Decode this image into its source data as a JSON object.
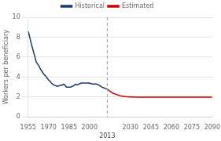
{
  "chart_data": {
    "type": "line",
    "ylabel": "Workers per beneficiary",
    "xlim": [
      1955,
      2090
    ],
    "ylim": [
      0,
      10
    ],
    "xticks": [
      1955,
      1970,
      1985,
      2000,
      2030,
      2045,
      2060,
      2075,
      2090
    ],
    "yticks": [
      0,
      2,
      4,
      6,
      8,
      10
    ],
    "grid": "y",
    "legend": "top",
    "series": [
      {
        "name": "Historical",
        "color": "#1a3a6b",
        "x": [
          1955,
          1956,
          1957,
          1958,
          1959,
          1960,
          1961,
          1962,
          1963,
          1964,
          1965,
          1966,
          1967,
          1968,
          1969,
          1970,
          1971,
          1972,
          1973,
          1974,
          1975,
          1976,
          1977,
          1978,
          1979,
          1980,
          1981,
          1982,
          1983,
          1984,
          1985,
          1986,
          1987,
          1988,
          1989,
          1990,
          1991,
          1992,
          1993,
          1994,
          1995,
          1996,
          1997,
          1998,
          1999,
          2000,
          2001,
          2002,
          2003,
          2004,
          2005,
          2006,
          2007,
          2008,
          2009,
          2010,
          2011,
          2012,
          2013
        ],
        "values": [
          8.6,
          8.1,
          7.5,
          7.0,
          6.5,
          6.0,
          5.5,
          5.3,
          5.1,
          4.8,
          4.6,
          4.4,
          4.2,
          4.1,
          3.9,
          3.7,
          3.6,
          3.4,
          3.3,
          3.2,
          3.15,
          3.1,
          3.1,
          3.15,
          3.2,
          3.2,
          3.3,
          3.2,
          3.0,
          3.0,
          3.0,
          3.0,
          3.05,
          3.1,
          3.2,
          3.3,
          3.2,
          3.3,
          3.35,
          3.4,
          3.4,
          3.4,
          3.4,
          3.4,
          3.4,
          3.4,
          3.35,
          3.3,
          3.3,
          3.3,
          3.3,
          3.25,
          3.2,
          3.1,
          3.0,
          2.95,
          2.9,
          2.85,
          2.8
        ]
      },
      {
        "name": "Estimated",
        "color": "#cc0000",
        "x": [
          2013,
          2014,
          2015,
          2016,
          2017,
          2018,
          2019,
          2020,
          2021,
          2022,
          2023,
          2024,
          2025,
          2026,
          2027,
          2028,
          2029,
          2030,
          2031,
          2032,
          2033,
          2034,
          2035,
          2040,
          2045,
          2050,
          2055,
          2060,
          2065,
          2070,
          2075,
          2080,
          2085,
          2090
        ],
        "values": [
          2.8,
          2.7,
          2.6,
          2.5,
          2.4,
          2.35,
          2.3,
          2.25,
          2.2,
          2.15,
          2.12,
          2.1,
          2.08,
          2.06,
          2.04,
          2.03,
          2.02,
          2.01,
          2.01,
          2.01,
          2.0,
          2.0,
          2.0,
          2.0,
          2.0,
          2.0,
          2.0,
          2.0,
          2.0,
          2.0,
          2.0,
          2.0,
          2.0,
          2.0
        ]
      }
    ],
    "annotations": [
      {
        "text": "2013",
        "x": 2013,
        "line_style": "dashed",
        "color": "#999999"
      }
    ]
  }
}
